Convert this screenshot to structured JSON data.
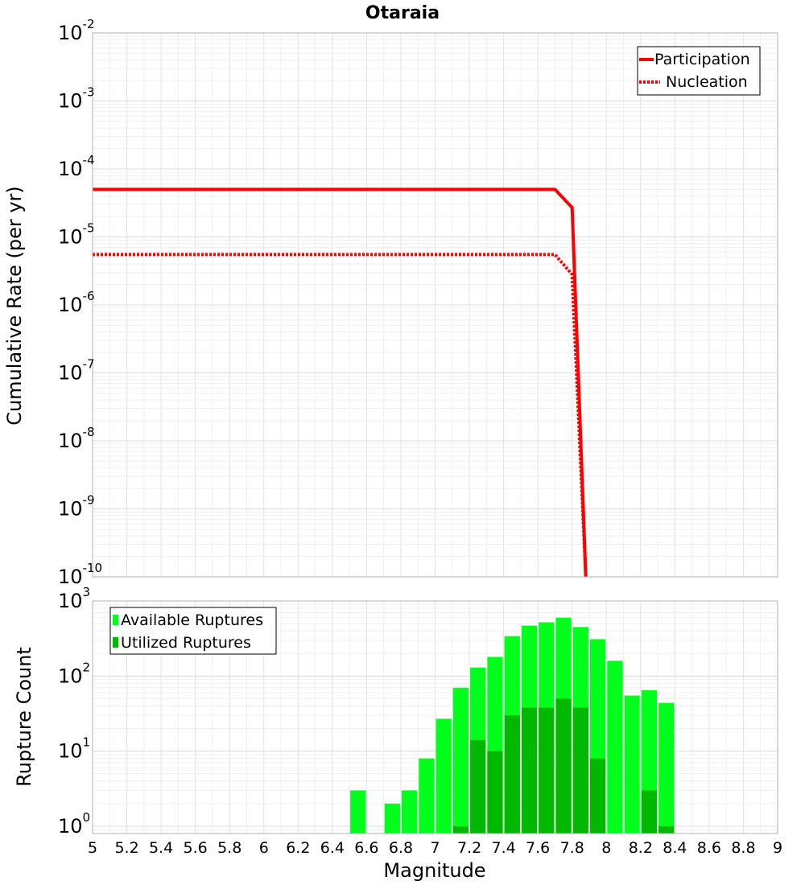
{
  "chart_data": [
    {
      "type": "line",
      "title": "Otaraia",
      "ylabel": "Cumulative Rate (per yr)",
      "xlabel": "",
      "xlim": [
        5,
        9
      ],
      "ylim": [
        1e-10,
        0.01
      ],
      "yscale": "log",
      "grid": true,
      "ytick_base": "10",
      "ytick_exps": [
        "-10",
        "-9",
        "-8",
        "-7",
        "-6",
        "-5",
        "-4",
        "-3",
        "-2"
      ],
      "legend": {
        "position": "top-right",
        "entries": [
          "Participation",
          "Nucleation"
        ]
      },
      "series": [
        {
          "name": "Participation",
          "style": "solid",
          "color": "#ff0000",
          "x": [
            5.0,
            7.7,
            7.8,
            7.88
          ],
          "y": [
            5e-05,
            5e-05,
            2.7e-05,
            1e-10
          ]
        },
        {
          "name": "Nucleation",
          "style": "dotted",
          "color": "#ff0000",
          "x": [
            5.0,
            7.7,
            7.8,
            7.88
          ],
          "y": [
            5.5e-06,
            5.5e-06,
            2.8e-06,
            1e-10
          ]
        }
      ]
    },
    {
      "type": "bar",
      "title": "",
      "ylabel": "Rupture Count",
      "xlabel": "Magnitude",
      "xlim": [
        5,
        9
      ],
      "ylim": [
        0.8,
        1000
      ],
      "yscale": "log",
      "grid": true,
      "ytick_base": "10",
      "ytick_exps": [
        "0",
        "1",
        "2",
        "3"
      ],
      "xticks": [
        "5",
        "5.2",
        "5.4",
        "5.6",
        "5.8",
        "6",
        "6.2",
        "6.4",
        "6.6",
        "6.8",
        "7",
        "7.2",
        "7.4",
        "7.6",
        "7.8",
        "8",
        "8.2",
        "8.4",
        "8.6",
        "8.8",
        "9"
      ],
      "bin_width": 0.1,
      "legend": {
        "position": "top-left",
        "entries": [
          "Available Ruptures",
          "Utilized Ruptures"
        ]
      },
      "series": [
        {
          "name": "Available Ruptures",
          "color": "#00ff1a",
          "x": [
            6.55,
            6.75,
            6.85,
            6.95,
            7.05,
            7.15,
            7.25,
            7.35,
            7.45,
            7.55,
            7.65,
            7.75,
            7.85,
            7.95,
            8.05,
            8.15,
            8.25,
            8.35
          ],
          "values": [
            3,
            2,
            3,
            8,
            27,
            70,
            130,
            180,
            340,
            470,
            520,
            600,
            450,
            310,
            160,
            55,
            65,
            44
          ]
        },
        {
          "name": "Utilized Ruptures",
          "color": "#00b800",
          "x": [
            7.15,
            7.25,
            7.35,
            7.45,
            7.55,
            7.65,
            7.75,
            7.85,
            7.95,
            8.25,
            8.35
          ],
          "values": [
            1,
            14,
            10,
            30,
            38,
            38,
            50,
            38,
            8,
            3,
            1
          ]
        }
      ]
    }
  ]
}
